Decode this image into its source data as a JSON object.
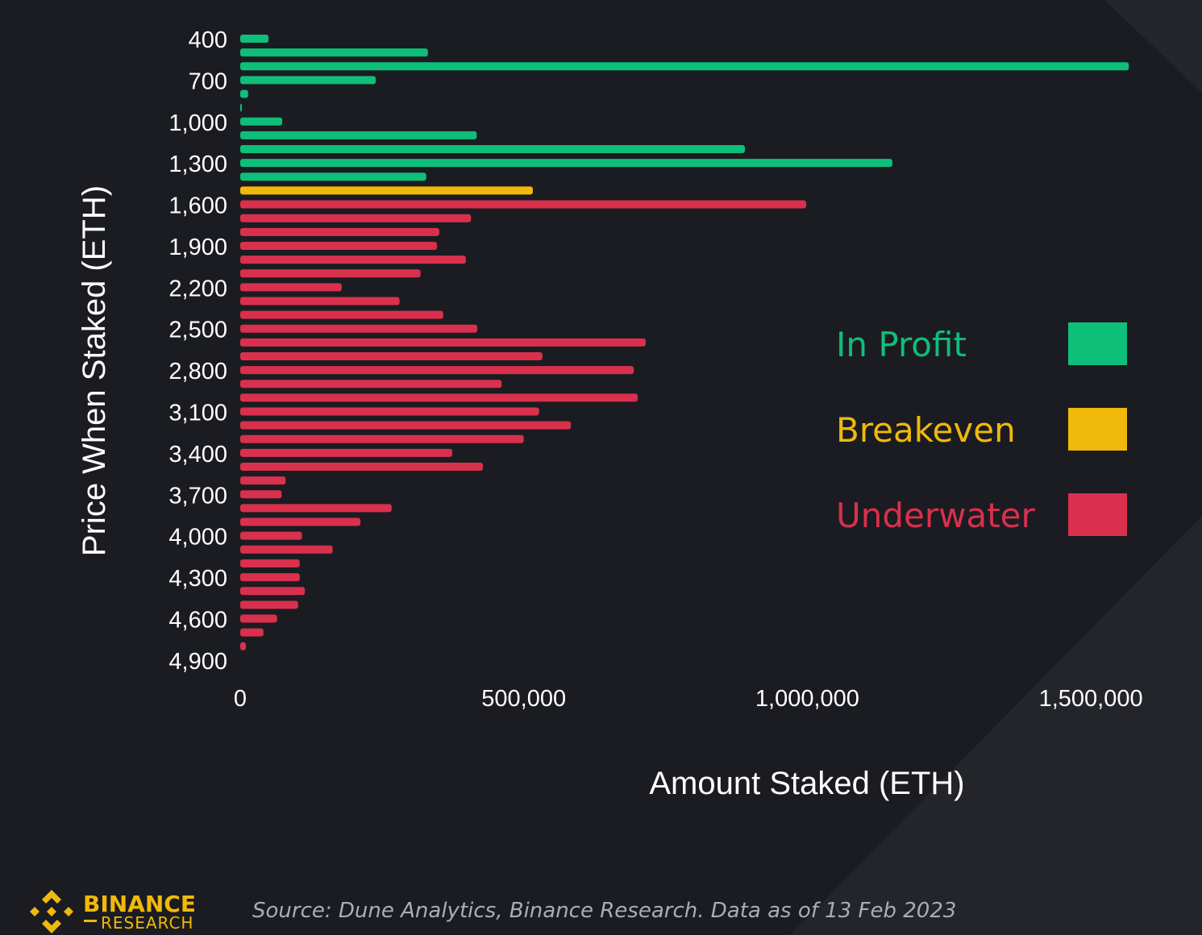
{
  "chart_data": {
    "type": "bar",
    "orientation": "horizontal",
    "ylabel": "Price When Staked (ETH)",
    "xlabel": "Amount Staked (ETH)",
    "xlim": [
      0,
      1500000
    ],
    "x_ticks": [
      0,
      500000,
      1000000,
      1500000
    ],
    "x_tick_labels": [
      "0",
      "500,000",
      "1,000,000",
      "1,500,000"
    ],
    "y_ticks": [
      400,
      700,
      1000,
      1300,
      1600,
      1900,
      2200,
      2500,
      2800,
      3100,
      3400,
      3700,
      4000,
      4300,
      4600,
      4900
    ],
    "y_tick_labels": [
      "400",
      "700",
      "1,000",
      "1,300",
      "1,600",
      "1,900",
      "2,200",
      "2,500",
      "2,800",
      "3,100",
      "3,400",
      "3,700",
      "4,000",
      "4,300",
      "4,600",
      "4,900"
    ],
    "categories": [
      400,
      500,
      600,
      700,
      800,
      900,
      1000,
      1100,
      1200,
      1300,
      1400,
      1500,
      1600,
      1700,
      1800,
      1900,
      2000,
      2100,
      2200,
      2300,
      2400,
      2500,
      2600,
      2700,
      2800,
      2900,
      3000,
      3100,
      3200,
      3300,
      3400,
      3500,
      3600,
      3700,
      3800,
      3900,
      4000,
      4100,
      4200,
      4300,
      4400,
      4500,
      4600,
      4700,
      4800
    ],
    "values": [
      50000,
      331000,
      1567000,
      239000,
      14000,
      2000,
      74000,
      417000,
      890000,
      1150000,
      328000,
      516000,
      998000,
      407000,
      351000,
      347000,
      398000,
      318000,
      179000,
      281000,
      358000,
      418000,
      715000,
      533000,
      694000,
      461000,
      701000,
      527000,
      583000,
      500000,
      374000,
      428000,
      80000,
      73000,
      267000,
      212000,
      109000,
      163000,
      105000,
      105000,
      114000,
      102000,
      65000,
      41000,
      10000
    ],
    "status": [
      "profit",
      "profit",
      "profit",
      "profit",
      "profit",
      "profit",
      "profit",
      "profit",
      "profit",
      "profit",
      "profit",
      "breakeven",
      "underwater",
      "underwater",
      "underwater",
      "underwater",
      "underwater",
      "underwater",
      "underwater",
      "underwater",
      "underwater",
      "underwater",
      "underwater",
      "underwater",
      "underwater",
      "underwater",
      "underwater",
      "underwater",
      "underwater",
      "underwater",
      "underwater",
      "underwater",
      "underwater",
      "underwater",
      "underwater",
      "underwater",
      "underwater",
      "underwater",
      "underwater",
      "underwater",
      "underwater",
      "underwater",
      "underwater",
      "underwater",
      "underwater"
    ],
    "legend": [
      {
        "key": "profit",
        "label": "In Profit",
        "color": "#0ebf7a"
      },
      {
        "key": "breakeven",
        "label": "Breakeven",
        "color": "#f0b90b"
      },
      {
        "key": "underwater",
        "label": "Underwater",
        "color": "#d9304e"
      }
    ],
    "legend_position": "right",
    "grid": false
  },
  "footer": {
    "brand_top": "BINANCE",
    "brand_bottom": "RESEARCH",
    "source": "Source: Dune Analytics, Binance Research. Data as of 13 Feb 2023"
  }
}
